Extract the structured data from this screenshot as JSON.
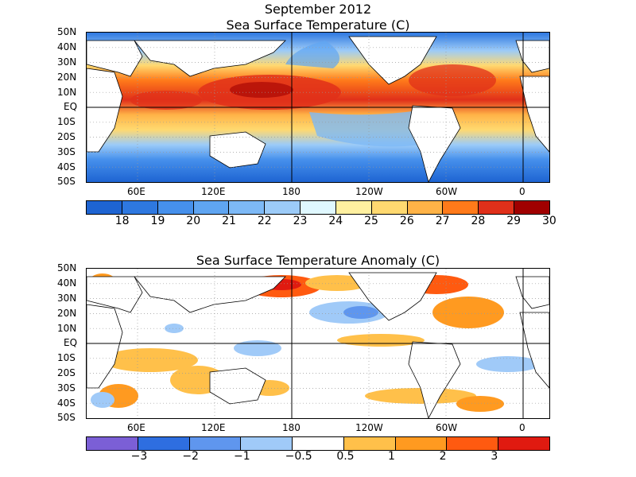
{
  "main_title": "September 2012",
  "sst_panel": {
    "title": "Sea Surface Temperature (C)",
    "lat_labels": [
      "50N",
      "40N",
      "30N",
      "20N",
      "10N",
      "EQ",
      "10S",
      "20S",
      "30S",
      "40S",
      "50S"
    ],
    "lon_labels": [
      "60E",
      "120E",
      "180",
      "120W",
      "60W",
      "0"
    ],
    "colorbar": {
      "colors": [
        "#1e64d2",
        "#2e78e0",
        "#4690ec",
        "#5fa5f2",
        "#7db9f6",
        "#9ccbf8",
        "#e0f8ff",
        "#fff0a0",
        "#ffd970",
        "#ffb347",
        "#ff7a1a",
        "#e0301a",
        "#a00000"
      ],
      "labels": [
        "18",
        "19",
        "20",
        "21",
        "22",
        "23",
        "24",
        "25",
        "26",
        "27",
        "28",
        "29",
        "30"
      ]
    }
  },
  "anomaly_panel": {
    "title": "Sea Surface Temperature Anomaly (C)",
    "lat_labels": [
      "50N",
      "40N",
      "30N",
      "20N",
      "10N",
      "EQ",
      "10S",
      "20S",
      "30S",
      "40S",
      "50S"
    ],
    "lon_labels": [
      "60E",
      "120E",
      "180",
      "120W",
      "60W",
      "0"
    ],
    "colorbar": {
      "colors": [
        "#7b5fd6",
        "#2e6ee0",
        "#5f96ee",
        "#a0caf8",
        "#ffffff",
        "#ffc04a",
        "#ff9a20",
        "#ff5a10",
        "#e01a10"
      ],
      "labels": [
        "−3",
        "−2",
        "−1",
        "−0.5",
        "0.5",
        "1",
        "2",
        "3"
      ]
    }
  }
}
